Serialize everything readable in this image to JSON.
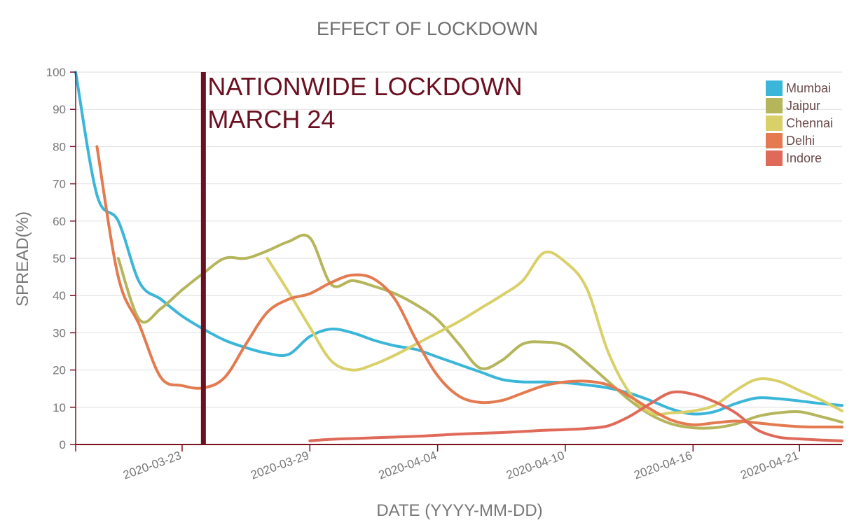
{
  "chart_data": {
    "type": "line",
    "title": "EFFECT OF LOCKDOWN",
    "xlabel": "DATE (YYYY-MM-DD)",
    "ylabel": "SPREAD(%)",
    "ylim": [
      0,
      100
    ],
    "yticks": [
      0,
      10,
      20,
      30,
      40,
      50,
      60,
      70,
      80,
      90,
      100
    ],
    "xlim": [
      "2020-03-18",
      "2020-04-23"
    ],
    "xticks": [
      "2020-03-23",
      "2020-03-29",
      "2020-04-04",
      "2020-04-10",
      "2020-04-16",
      "2020-04-21"
    ],
    "grid": true,
    "legend_position": "top-right",
    "annotation": {
      "x": "2020-03-24",
      "line1": "NATIONWIDE LOCKDOWN",
      "line2": "MARCH 24",
      "color": "#6b1020"
    },
    "axis_color": "#7a1020",
    "series": [
      {
        "name": "Mumbai",
        "color": "#3bb6d9",
        "points": [
          [
            "2020-03-18",
            100
          ],
          [
            "2020-03-19",
            67
          ],
          [
            "2020-03-20",
            60
          ],
          [
            "2020-03-21",
            43.5
          ],
          [
            "2020-03-22",
            39
          ],
          [
            "2020-03-23",
            34.5
          ],
          [
            "2020-03-24",
            31
          ],
          [
            "2020-03-25",
            28
          ],
          [
            "2020-03-26",
            26
          ],
          [
            "2020-03-27",
            24.5
          ],
          [
            "2020-03-28",
            24.2
          ],
          [
            "2020-03-29",
            29
          ],
          [
            "2020-03-30",
            31
          ],
          [
            "2020-03-31",
            30
          ],
          [
            "2020-04-01",
            28
          ],
          [
            "2020-04-02",
            26.5
          ],
          [
            "2020-04-03",
            25.5
          ],
          [
            "2020-04-04",
            23.5
          ],
          [
            "2020-04-05",
            21.5
          ],
          [
            "2020-04-06",
            19.5
          ],
          [
            "2020-04-07",
            17.5
          ],
          [
            "2020-04-08",
            16.8
          ],
          [
            "2020-04-09",
            16.8
          ],
          [
            "2020-04-10",
            16.6
          ],
          [
            "2020-04-11",
            16
          ],
          [
            "2020-04-12",
            15.2
          ],
          [
            "2020-04-13",
            13.8
          ],
          [
            "2020-04-14",
            11.8
          ],
          [
            "2020-04-15",
            9.5
          ],
          [
            "2020-04-16",
            8.2
          ],
          [
            "2020-04-17",
            8.8
          ],
          [
            "2020-04-18",
            11
          ],
          [
            "2020-04-19",
            12.5
          ],
          [
            "2020-04-20",
            12.3
          ],
          [
            "2020-04-21",
            11.7
          ],
          [
            "2020-04-22",
            11
          ],
          [
            "2020-04-23",
            10.5
          ]
        ]
      },
      {
        "name": "Jaipur",
        "color": "#b5b55c",
        "points": [
          [
            "2020-03-20",
            50
          ],
          [
            "2020-03-21",
            33.5
          ],
          [
            "2020-03-22",
            36.5
          ],
          [
            "2020-03-23",
            41.5
          ],
          [
            "2020-03-24",
            46
          ],
          [
            "2020-03-25",
            50
          ],
          [
            "2020-03-26",
            50
          ],
          [
            "2020-03-27",
            52
          ],
          [
            "2020-03-28",
            54.5
          ],
          [
            "2020-03-29",
            55.5
          ],
          [
            "2020-03-30",
            43
          ],
          [
            "2020-03-31",
            44
          ],
          [
            "2020-04-01",
            42.5
          ],
          [
            "2020-04-02",
            40.5
          ],
          [
            "2020-04-03",
            37.5
          ],
          [
            "2020-04-04",
            33.5
          ],
          [
            "2020-04-05",
            27
          ],
          [
            "2020-04-06",
            20.5
          ],
          [
            "2020-04-07",
            22.5
          ],
          [
            "2020-04-08",
            27
          ],
          [
            "2020-04-09",
            27.5
          ],
          [
            "2020-04-10",
            26.5
          ],
          [
            "2020-04-11",
            22
          ],
          [
            "2020-04-12",
            17
          ],
          [
            "2020-04-13",
            12
          ],
          [
            "2020-04-14",
            8
          ],
          [
            "2020-04-15",
            5.5
          ],
          [
            "2020-04-16",
            4.5
          ],
          [
            "2020-04-17",
            4.5
          ],
          [
            "2020-04-18",
            5.5
          ],
          [
            "2020-04-19",
            7.5
          ],
          [
            "2020-04-20",
            8.5
          ],
          [
            "2020-04-21",
            8.8
          ],
          [
            "2020-04-22",
            7.5
          ],
          [
            "2020-04-23",
            6
          ]
        ]
      },
      {
        "name": "Chennai",
        "color": "#d9d06a",
        "points": [
          [
            "2020-03-27",
            50
          ],
          [
            "2020-03-28",
            41
          ],
          [
            "2020-03-29",
            31.5
          ],
          [
            "2020-03-30",
            22.5
          ],
          [
            "2020-03-31",
            20
          ],
          [
            "2020-04-01",
            21.5
          ],
          [
            "2020-04-02",
            24
          ],
          [
            "2020-04-03",
            27
          ],
          [
            "2020-04-04",
            30
          ],
          [
            "2020-04-05",
            33
          ],
          [
            "2020-04-06",
            36.5
          ],
          [
            "2020-04-07",
            40
          ],
          [
            "2020-04-08",
            44
          ],
          [
            "2020-04-09",
            51.5
          ],
          [
            "2020-04-10",
            49
          ],
          [
            "2020-04-11",
            42
          ],
          [
            "2020-04-12",
            25
          ],
          [
            "2020-04-13",
            14
          ],
          [
            "2020-04-14",
            8.5
          ],
          [
            "2020-04-15",
            8.5
          ],
          [
            "2020-04-16",
            9
          ],
          [
            "2020-04-17",
            10.5
          ],
          [
            "2020-04-18",
            14.5
          ],
          [
            "2020-04-19",
            17.5
          ],
          [
            "2020-04-20",
            17
          ],
          [
            "2020-04-21",
            14.5
          ],
          [
            "2020-04-22",
            12
          ],
          [
            "2020-04-23",
            9
          ]
        ]
      },
      {
        "name": "Delhi",
        "color": "#e47a50",
        "points": [
          [
            "2020-03-19",
            80
          ],
          [
            "2020-03-20",
            45
          ],
          [
            "2020-03-21",
            32
          ],
          [
            "2020-03-22",
            18
          ],
          [
            "2020-03-23",
            15.8
          ],
          [
            "2020-03-24",
            15.2
          ],
          [
            "2020-03-25",
            18
          ],
          [
            "2020-03-26",
            27
          ],
          [
            "2020-03-27",
            35.5
          ],
          [
            "2020-03-28",
            39
          ],
          [
            "2020-03-29",
            40.5
          ],
          [
            "2020-03-30",
            43.5
          ],
          [
            "2020-03-31",
            45.5
          ],
          [
            "2020-04-01",
            44.5
          ],
          [
            "2020-04-02",
            39
          ],
          [
            "2020-04-03",
            28
          ],
          [
            "2020-04-04",
            18.5
          ],
          [
            "2020-04-05",
            13
          ],
          [
            "2020-04-06",
            11.3
          ],
          [
            "2020-04-07",
            11.8
          ],
          [
            "2020-04-08",
            13.8
          ],
          [
            "2020-04-09",
            15.8
          ],
          [
            "2020-04-10",
            16.8
          ],
          [
            "2020-04-11",
            17
          ],
          [
            "2020-04-12",
            16
          ],
          [
            "2020-04-13",
            13
          ],
          [
            "2020-04-14",
            9.5
          ],
          [
            "2020-04-15",
            6.5
          ],
          [
            "2020-04-16",
            5.3
          ],
          [
            "2020-04-17",
            5.8
          ],
          [
            "2020-04-18",
            6.3
          ],
          [
            "2020-04-19",
            5.8
          ],
          [
            "2020-04-20",
            5.2
          ],
          [
            "2020-04-21",
            4.8
          ],
          [
            "2020-04-22",
            4.7
          ],
          [
            "2020-04-23",
            4.7
          ]
        ]
      },
      {
        "name": "Indore",
        "color": "#e06a5a",
        "points": [
          [
            "2020-03-29",
            1
          ],
          [
            "2020-03-30",
            1.4
          ],
          [
            "2020-03-31",
            1.6
          ],
          [
            "2020-04-01",
            1.8
          ],
          [
            "2020-04-02",
            2
          ],
          [
            "2020-04-03",
            2.2
          ],
          [
            "2020-04-04",
            2.5
          ],
          [
            "2020-04-05",
            2.8
          ],
          [
            "2020-04-06",
            3
          ],
          [
            "2020-04-07",
            3.2
          ],
          [
            "2020-04-08",
            3.5
          ],
          [
            "2020-04-09",
            3.8
          ],
          [
            "2020-04-10",
            4
          ],
          [
            "2020-04-11",
            4.3
          ],
          [
            "2020-04-12",
            5
          ],
          [
            "2020-04-13",
            7.5
          ],
          [
            "2020-04-14",
            11
          ],
          [
            "2020-04-15",
            14
          ],
          [
            "2020-04-16",
            13.5
          ],
          [
            "2020-04-17",
            11.5
          ],
          [
            "2020-04-18",
            8.5
          ],
          [
            "2020-04-19",
            4
          ],
          [
            "2020-04-20",
            2
          ],
          [
            "2020-04-21",
            1.5
          ],
          [
            "2020-04-22",
            1.2
          ],
          [
            "2020-04-23",
            1
          ]
        ]
      }
    ]
  }
}
